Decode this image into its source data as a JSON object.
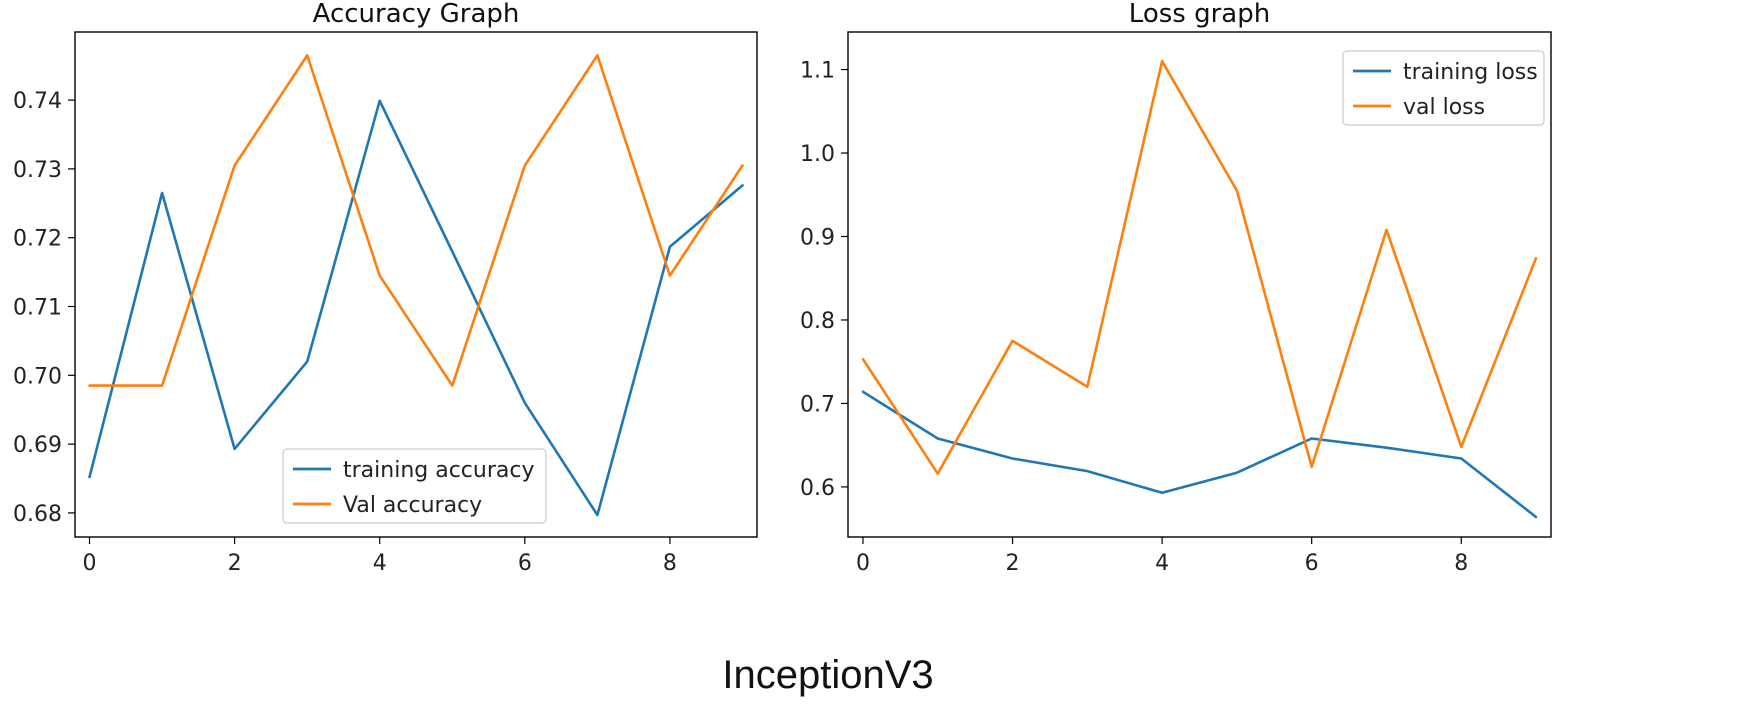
{
  "figure_caption": "InceptionV3",
  "chart_data": [
    {
      "type": "line",
      "title": "Accuracy Graph",
      "xlabel": "",
      "ylabel": "",
      "x": [
        0,
        1,
        2,
        3,
        4,
        5,
        6,
        7,
        8,
        9
      ],
      "xticks": [
        "0",
        "2",
        "4",
        "6",
        "8"
      ],
      "yticks": [
        "0.68",
        "0.69",
        "0.70",
        "0.71",
        "0.72",
        "0.73",
        "0.74"
      ],
      "xlim": [
        -0.2,
        9.2
      ],
      "ylim": [
        0.6765,
        0.7499
      ],
      "grid": false,
      "legend_position": "bottom-center",
      "series": [
        {
          "name": "training accuracy",
          "color": "#1f77b4",
          "values": [
            0.6852,
            0.7265,
            0.6893,
            0.702,
            0.7399,
            0.718,
            0.696,
            0.6797,
            0.7187,
            0.7276
          ]
        },
        {
          "name": "Val accuracy",
          "color": "#ff7f0e",
          "values": [
            0.6985,
            0.6985,
            0.7305,
            0.7465,
            0.7145,
            0.6985,
            0.7305,
            0.7465,
            0.7145,
            0.7305
          ]
        }
      ]
    },
    {
      "type": "line",
      "title": "Loss graph",
      "xlabel": "",
      "ylabel": "",
      "x": [
        0,
        1,
        2,
        3,
        4,
        5,
        6,
        7,
        8,
        9
      ],
      "xticks": [
        "0",
        "2",
        "4",
        "6",
        "8"
      ],
      "yticks": [
        "0.6",
        "0.7",
        "0.8",
        "0.9",
        "1.0",
        "1.1"
      ],
      "xlim": [
        -0.2,
        9.2
      ],
      "ylim": [
        0.54,
        1.145
      ],
      "grid": false,
      "legend_position": "top-right",
      "series": [
        {
          "name": "training loss",
          "color": "#1f77b4",
          "values": [
            0.714,
            0.658,
            0.634,
            0.619,
            0.593,
            0.617,
            0.658,
            0.647,
            0.634,
            0.564
          ]
        },
        {
          "name": "val loss",
          "color": "#ff7f0e",
          "values": [
            0.753,
            0.616,
            0.775,
            0.72,
            1.11,
            0.955,
            0.624,
            0.908,
            0.648,
            0.874
          ]
        }
      ]
    }
  ]
}
